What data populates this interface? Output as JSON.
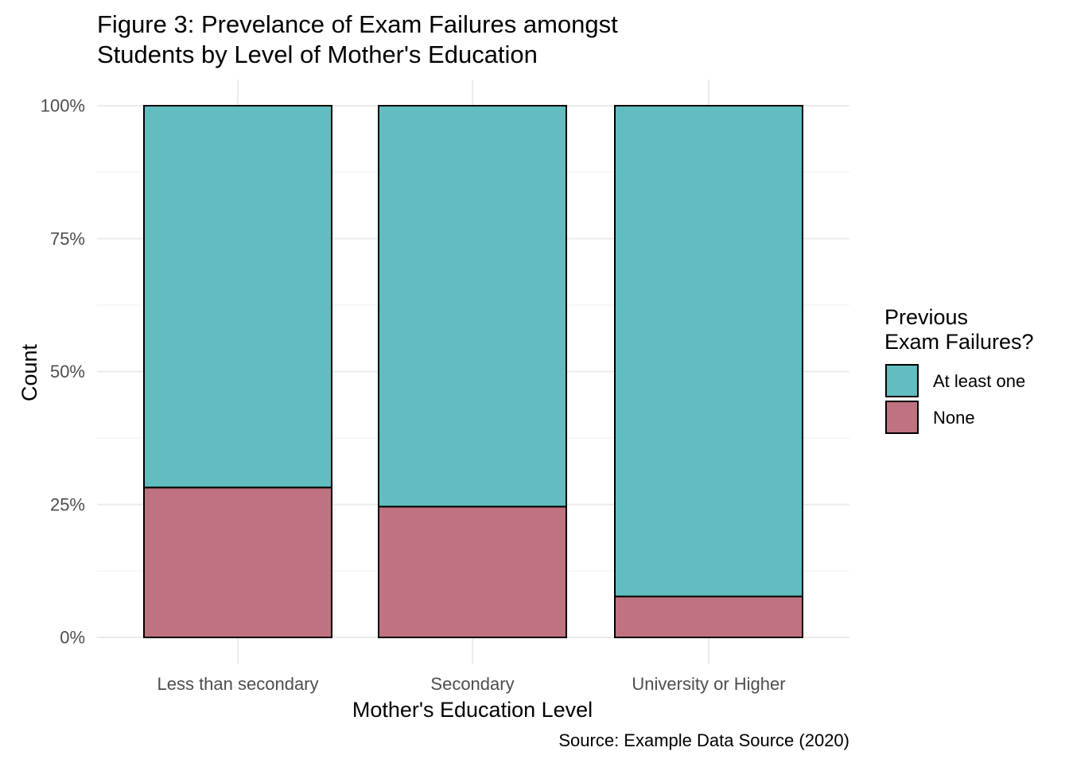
{
  "title_lines": [
    "Figure 3: Prevelance of Exam Failures amongst",
    "Students by Level of Mother's Education"
  ],
  "caption": "Source: Example Data Source (2020)",
  "legend": {
    "title_lines": [
      "Previous",
      "Exam Failures?"
    ],
    "items": [
      {
        "label": "At least one",
        "color": "#61BDBF"
      },
      {
        "label": "None",
        "color": "#BF7280"
      }
    ]
  },
  "chart_data": {
    "type": "bar",
    "stacked": true,
    "normalized": true,
    "categories": [
      "Less than secondary",
      "Secondary",
      "University or Higher"
    ],
    "series": [
      {
        "name": "None",
        "color": "#BF7280",
        "values": [
          28.2,
          24.6,
          7.7
        ]
      },
      {
        "name": "At least one",
        "color": "#61BDBF",
        "values": [
          71.8,
          75.4,
          92.3
        ]
      }
    ],
    "xlabel": "Mother's Education Level",
    "ylabel": "Count",
    "ylim": [
      0,
      100
    ],
    "yticks": [
      0,
      25,
      50,
      75,
      100
    ],
    "ytick_labels": [
      "0%",
      "25%",
      "50%",
      "75%",
      "100%"
    ],
    "grid": true,
    "legend_position": "right"
  }
}
